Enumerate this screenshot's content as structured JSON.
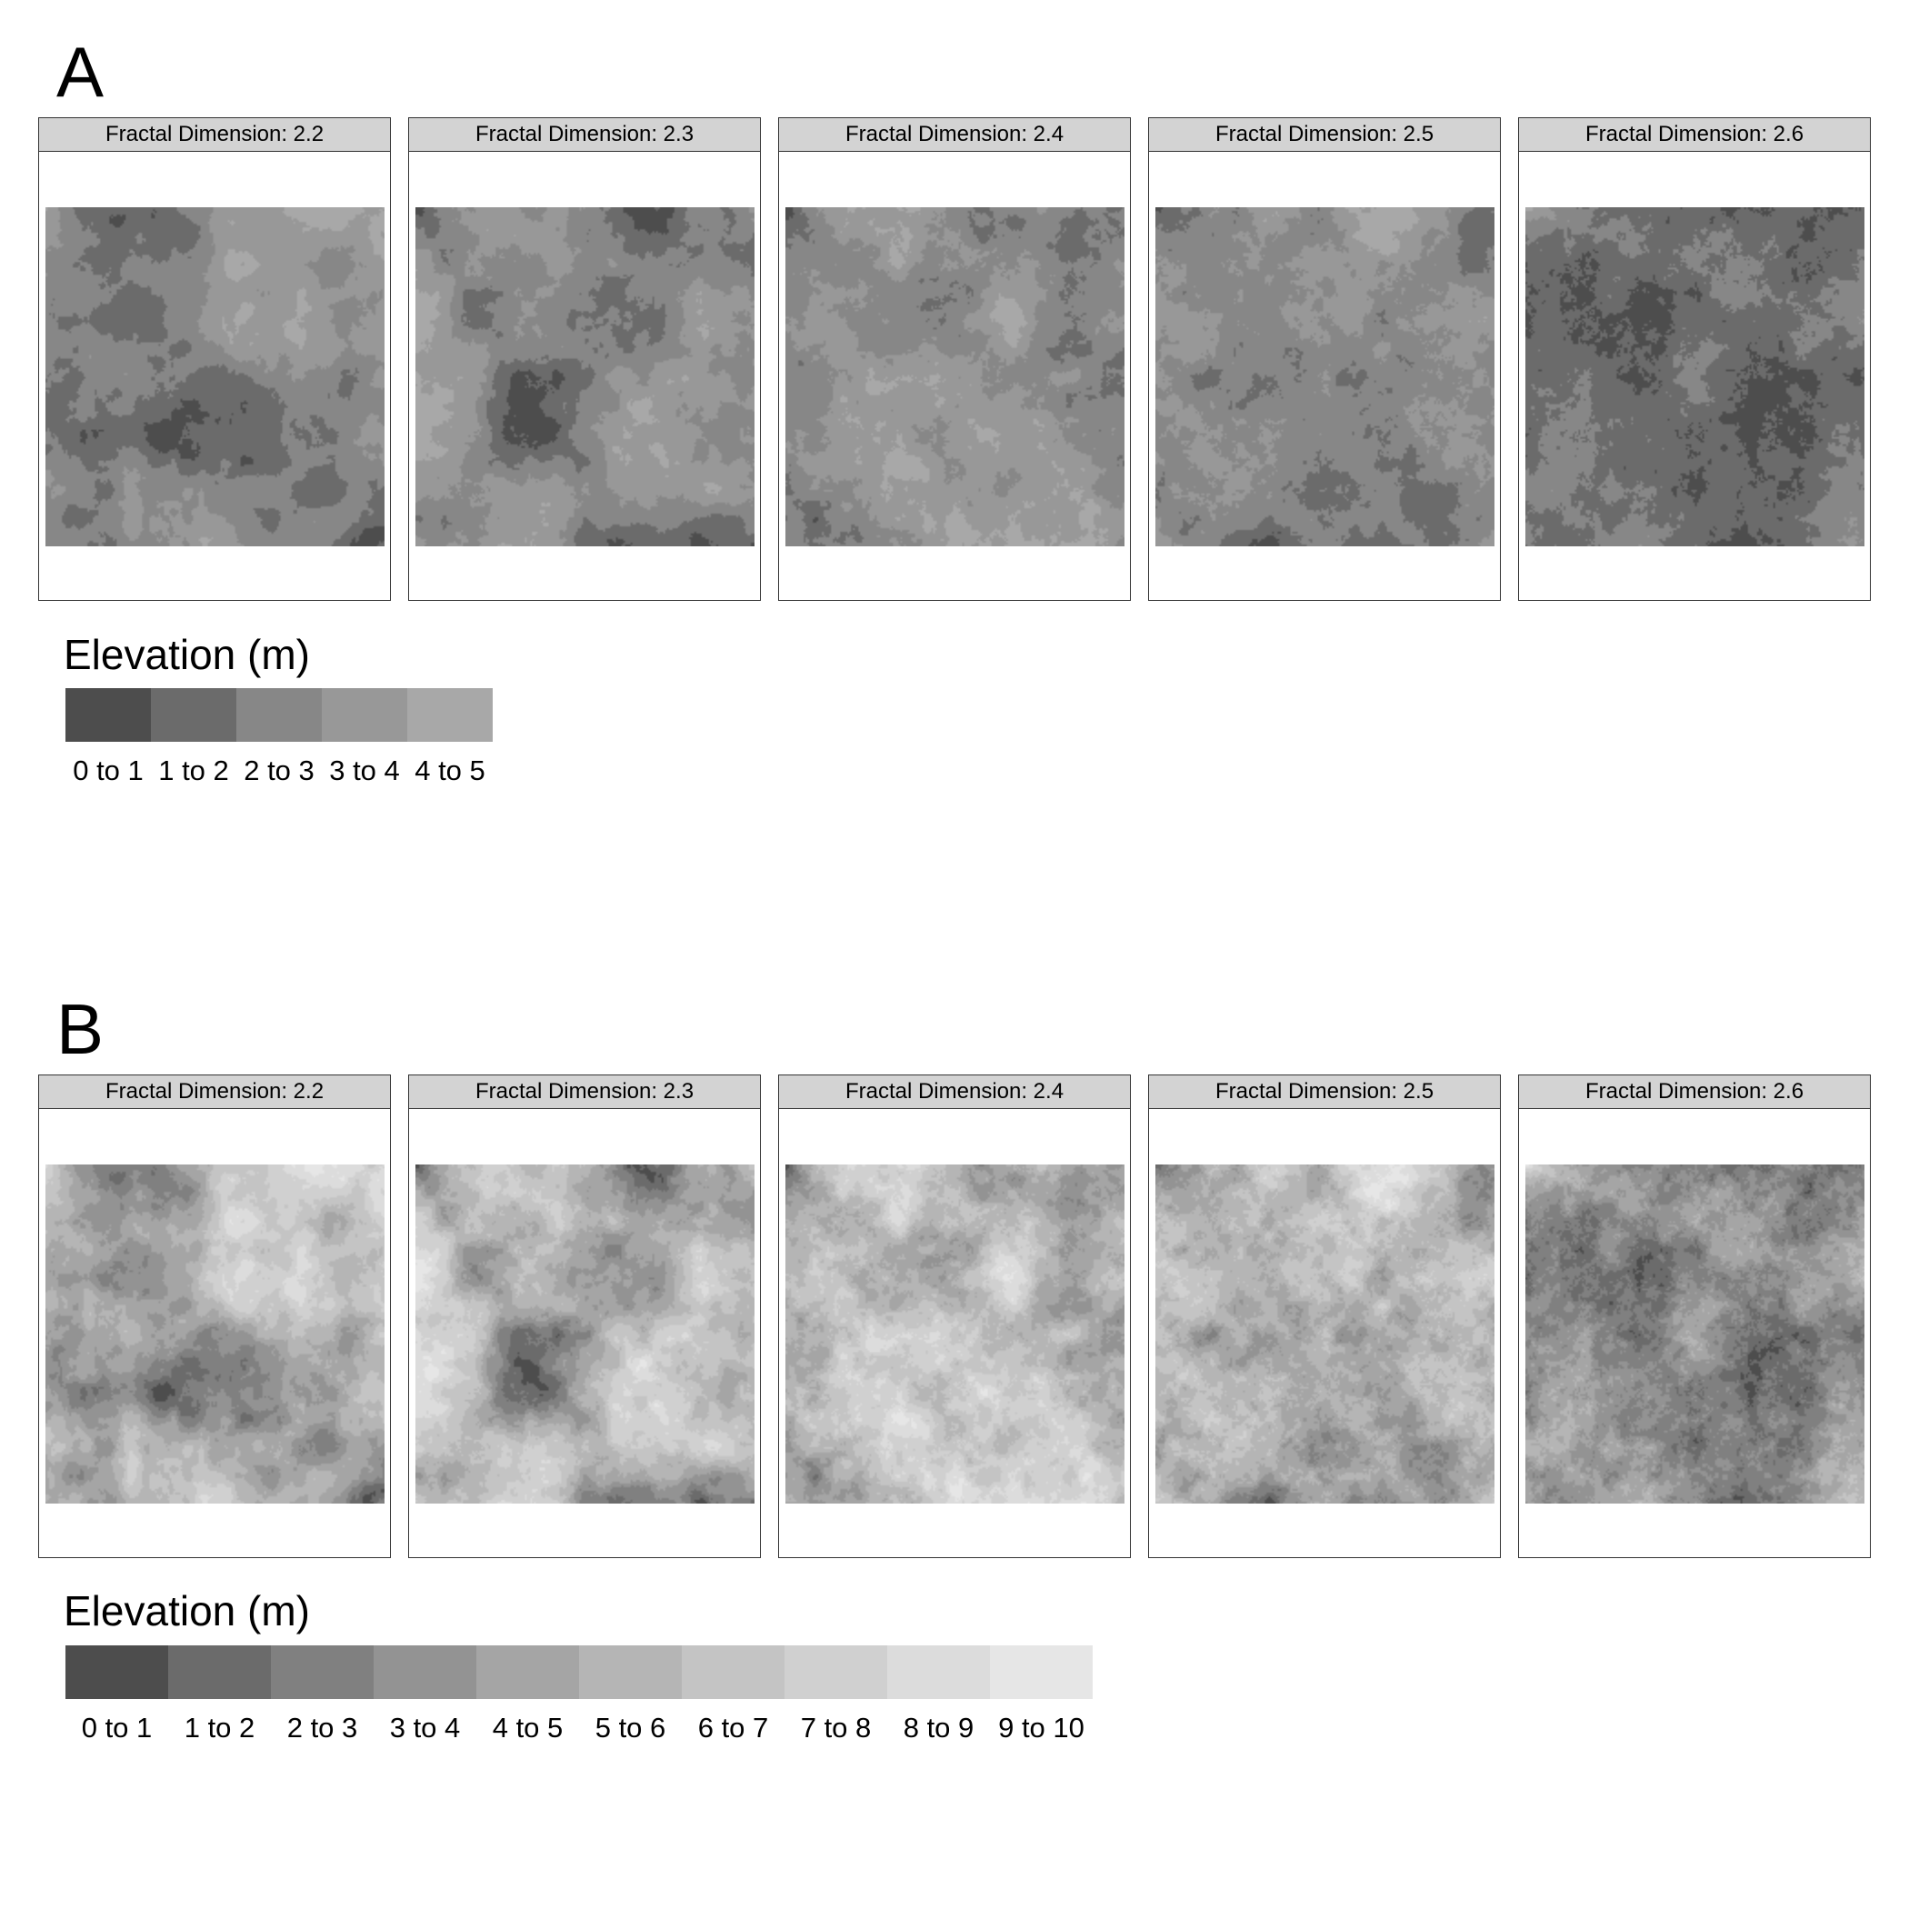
{
  "chart_data": [
    {
      "panel": "A",
      "type": "heatmap",
      "facets": [
        {
          "label": "Fractal Dimension: 2.2",
          "fractal_dimension": 2.2,
          "elevation_range": [
            0,
            5
          ]
        },
        {
          "label": "Fractal Dimension: 2.3",
          "fractal_dimension": 2.3,
          "elevation_range": [
            0,
            5
          ]
        },
        {
          "label": "Fractal Dimension: 2.4",
          "fractal_dimension": 2.4,
          "elevation_range": [
            0,
            5
          ]
        },
        {
          "label": "Fractal Dimension: 2.5",
          "fractal_dimension": 2.5,
          "elevation_range": [
            0,
            5
          ]
        },
        {
          "label": "Fractal Dimension: 2.6",
          "fractal_dimension": 2.6,
          "elevation_range": [
            0,
            5
          ]
        }
      ],
      "legend": {
        "title": "Elevation (m)",
        "bins": [
          "0 to 1",
          "1 to 2",
          "2 to 3",
          "3 to 4",
          "4 to 5"
        ],
        "colors": [
          "#4d4d4d",
          "#6b6b6b",
          "#878787",
          "#989898",
          "#a8a8a8"
        ]
      }
    },
    {
      "panel": "B",
      "type": "heatmap",
      "facets": [
        {
          "label": "Fractal Dimension: 2.2",
          "fractal_dimension": 2.2,
          "elevation_range": [
            0,
            10
          ]
        },
        {
          "label": "Fractal Dimension: 2.3",
          "fractal_dimension": 2.3,
          "elevation_range": [
            0,
            10
          ]
        },
        {
          "label": "Fractal Dimension: 2.4",
          "fractal_dimension": 2.4,
          "elevation_range": [
            0,
            10
          ]
        },
        {
          "label": "Fractal Dimension: 2.5",
          "fractal_dimension": 2.5,
          "elevation_range": [
            0,
            10
          ]
        },
        {
          "label": "Fractal Dimension: 2.6",
          "fractal_dimension": 2.6,
          "elevation_range": [
            0,
            10
          ]
        }
      ],
      "legend": {
        "title": "Elevation (m)",
        "bins": [
          "0 to 1",
          "1 to 2",
          "2 to 3",
          "3 to 4",
          "4 to 5",
          "5 to 6",
          "6 to 7",
          "7 to 8",
          "8 to 9",
          "9 to 10"
        ],
        "colors": [
          "#4d4d4d",
          "#6b6b6b",
          "#808080",
          "#939393",
          "#a5a5a5",
          "#b5b5b5",
          "#c4c4c4",
          "#d0d0d0",
          "#dcdcdc",
          "#e6e6e6"
        ]
      }
    }
  ]
}
